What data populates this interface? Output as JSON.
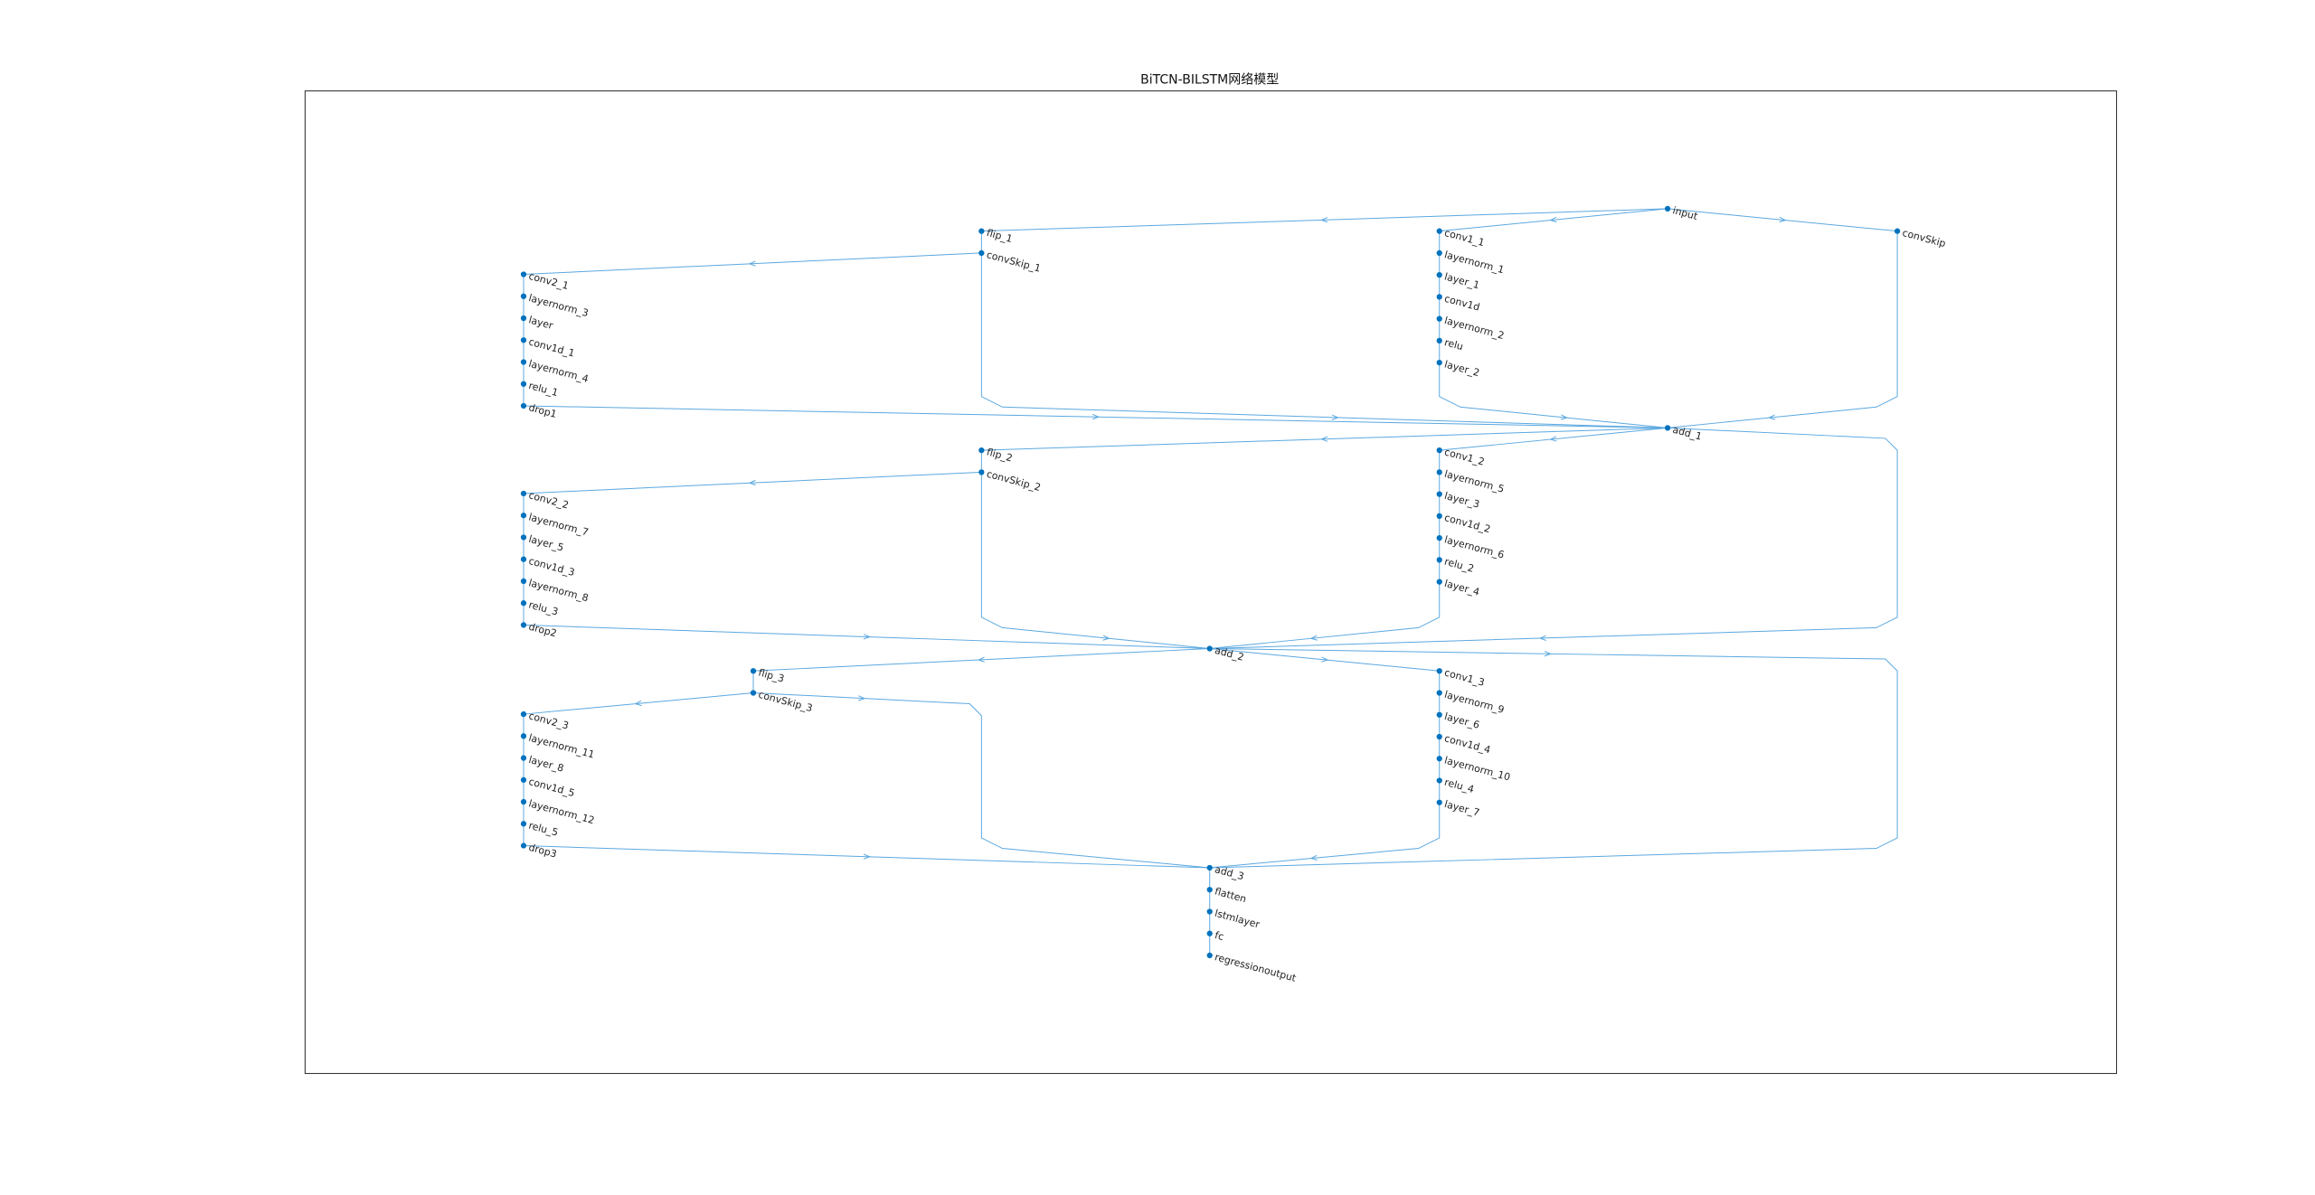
{
  "title": "BiTCN-BILSTM网络模型",
  "nodes": [
    {
      "label": "input"
    },
    {
      "label": "flip_1"
    },
    {
      "label": "convSkip_1"
    },
    {
      "label": "conv1_1"
    },
    {
      "label": "layernorm_1"
    },
    {
      "label": "layer_1"
    },
    {
      "label": "conv1d"
    },
    {
      "label": "layernorm_2"
    },
    {
      "label": "relu"
    },
    {
      "label": "layer_2"
    },
    {
      "label": "convSkip"
    },
    {
      "label": "conv2_1"
    },
    {
      "label": "layernorm_3"
    },
    {
      "label": "layer"
    },
    {
      "label": "conv1d_1"
    },
    {
      "label": "layernorm_4"
    },
    {
      "label": "relu_1"
    },
    {
      "label": "drop1"
    },
    {
      "label": "add_1"
    },
    {
      "label": "flip_2"
    },
    {
      "label": "convSkip_2"
    },
    {
      "label": "conv1_2"
    },
    {
      "label": "layernorm_5"
    },
    {
      "label": "layer_3"
    },
    {
      "label": "conv1d_2"
    },
    {
      "label": "layernorm_6"
    },
    {
      "label": "relu_2"
    },
    {
      "label": "layer_4"
    },
    {
      "label": "conv2_2"
    },
    {
      "label": "layernorm_7"
    },
    {
      "label": "layer_5"
    },
    {
      "label": "conv1d_3"
    },
    {
      "label": "layernorm_8"
    },
    {
      "label": "relu_3"
    },
    {
      "label": "drop2"
    },
    {
      "label": "add_2"
    },
    {
      "label": "flip_3"
    },
    {
      "label": "convSkip_3"
    },
    {
      "label": "conv1_3"
    },
    {
      "label": "layernorm_9"
    },
    {
      "label": "layer_6"
    },
    {
      "label": "conv1d_4"
    },
    {
      "label": "layernorm_10"
    },
    {
      "label": "relu_4"
    },
    {
      "label": "layer_7"
    },
    {
      "label": "conv2_3"
    },
    {
      "label": "layernorm_11"
    },
    {
      "label": "layer_8"
    },
    {
      "label": "conv1d_5"
    },
    {
      "label": "layernorm_12"
    },
    {
      "label": "relu_5"
    },
    {
      "label": "drop3"
    },
    {
      "label": "add_3"
    },
    {
      "label": "flatten"
    },
    {
      "label": "lstmlayer"
    },
    {
      "label": "fc"
    },
    {
      "label": "regressionoutput"
    }
  ]
}
